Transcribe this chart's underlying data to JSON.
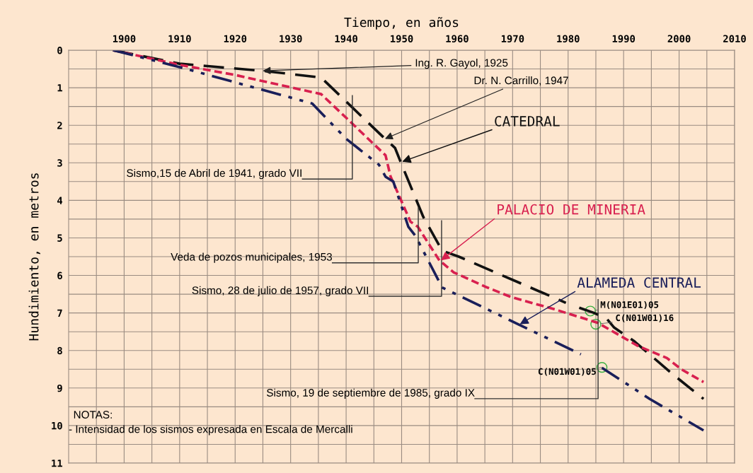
{
  "chart_data": {
    "type": "line",
    "xlabel": "Tiempo, en años",
    "ylabel": "Hundimiento, en metros",
    "xlim": [
      1890,
      2010
    ],
    "ylim": [
      11,
      0
    ],
    "xticks": [
      {
        "value": 1895,
        "label": null
      },
      1900,
      {
        "value": 1905,
        "label": null
      },
      1910,
      {
        "value": 1915,
        "label": null
      },
      1920,
      {
        "value": 1925,
        "label": null
      },
      1930,
      {
        "value": 1935,
        "label": null
      },
      1940,
      {
        "value": 1945,
        "label": null
      },
      1950,
      {
        "value": 1955,
        "label": null
      },
      1960,
      {
        "value": 1965,
        "label": null
      },
      1970,
      {
        "value": 1975,
        "label": null
      },
      1980,
      {
        "value": 1985,
        "label": null
      },
      1990,
      {
        "value": 1995,
        "label": null
      },
      2000,
      {
        "value": 2005,
        "label": null
      },
      2010
    ],
    "yticks": [
      0,
      {
        "value": 0.5,
        "label": null
      },
      1,
      {
        "value": 1.5,
        "label": null
      },
      2,
      {
        "value": 2.5,
        "label": null
      },
      3,
      {
        "value": 3.5,
        "label": null
      },
      4,
      {
        "value": 4.5,
        "label": null
      },
      5,
      {
        "value": 5.5,
        "label": null
      },
      6,
      {
        "value": 6.5,
        "label": null
      },
      7,
      {
        "value": 7.5,
        "label": null
      },
      8,
      {
        "value": 8.5,
        "label": null
      },
      9,
      {
        "value": 9.5,
        "label": null
      },
      10,
      {
        "value": 10.5,
        "label": null
      },
      11
    ],
    "grid": true,
    "series": [
      {
        "name": "CATEDRAL",
        "color": "#111111",
        "line_style": "dashed",
        "x": [
          1898,
          1910,
          1925,
          1935.5,
          1947,
          1948.8,
          1949.8,
          1953.9,
          1957.3,
          1960.3,
          1979.6,
          1980.8,
          1982,
          1984.7,
          1987,
          1988.3,
          1991.8,
          1999,
          2004.4
        ],
        "values": [
          0,
          0.36,
          0.55,
          0.73,
          2.36,
          2.6,
          2.97,
          4.44,
          5.34,
          5.5,
          6.73,
          null,
          6.86,
          7.0,
          7.16,
          7.39,
          7.74,
          8.65,
          9.29
        ]
      },
      {
        "name": "PALACIO DE MINERIA",
        "color": "#d8204f",
        "line_style": "dotted",
        "x": [
          1898,
          1910,
          1920,
          1935.5,
          1940,
          1947.1,
          1948,
          1951.6,
          1952.9,
          1956.8,
          1959.4,
          1965.4,
          1969.8,
          1977.5,
          1985.3,
          1992.6,
          1997.8,
          2000.4,
          2004.4
        ],
        "values": [
          0,
          0.39,
          0.66,
          1.17,
          1.8,
          2.8,
          3.36,
          4.57,
          4.7,
          5.6,
          5.92,
          6.32,
          6.58,
          6.9,
          7.26,
          7.88,
          8.2,
          8.5,
          8.84
        ]
      },
      {
        "name": "ALAMEDA CENTRAL",
        "color": "#1a1f5a",
        "line_style": "dashdotdot",
        "x": [
          1898,
          1910,
          1933.9,
          1940,
          1945.9,
          1947.1,
          1948.5,
          1951.2,
          1952.5,
          1957.3,
          1971,
          1982.3,
          1984,
          1986.1,
          1994.7,
          2004.4
        ],
        "values": [
          0,
          0.45,
          1.42,
          2.36,
          3.05,
          3.37,
          3.5,
          4.7,
          4.95,
          6.32,
          7.3,
          8.1,
          null,
          8.46,
          9.29,
          10.13
        ]
      }
    ],
    "annotations": [
      {
        "text": "Ing. R. Gayol, 1925",
        "x": 1925,
        "y": 0.55
      },
      {
        "text": "Dr. N. Carrillo, 1947",
        "x": 1947,
        "y": 2.36
      },
      "Sismo,15 de Abril de 1941, grado VII",
      {
        "text": "Veda de pozos municipales, 1953",
        "x": 1953,
        "y": 4.2
      },
      "Sismo, 28 de julio de 1957, grado VII",
      "Sismo, 19 de septiembre de 1985, grado IX",
      {
        "text": "M(N01E01)05",
        "x": 1984,
        "y": 6.95
      },
      {
        "text": "C(N01W01)16",
        "x": 1985,
        "y": 7.3
      },
      {
        "text": "C(N01W01)05",
        "x": 1986.1,
        "y": 8.45
      },
      "NOTAS:",
      "- Intensidad de los sismos expresada en Escala de Mercalli"
    ]
  }
}
